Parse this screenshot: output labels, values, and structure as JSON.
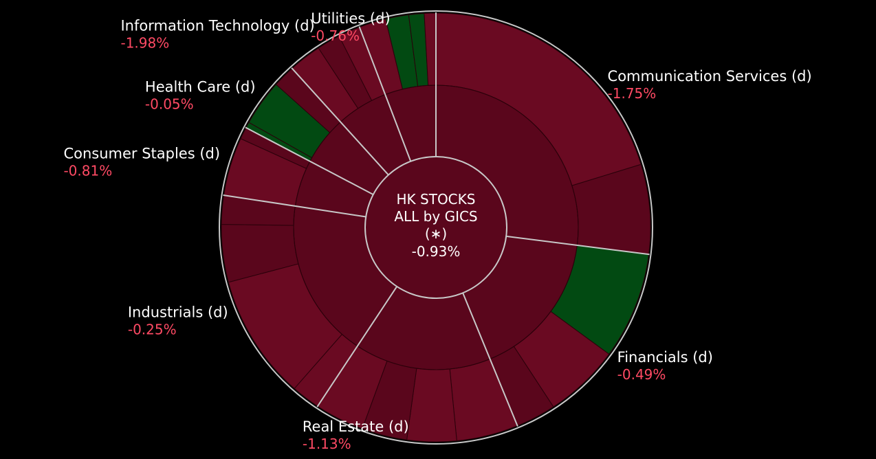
{
  "chart_data": {
    "type": "sunburst",
    "title": "HK STOCKS",
    "subtitle": "ALL by GICS",
    "marker": "(∗)",
    "total_change": "-0.93%",
    "colors": {
      "background": "#000000",
      "down": "#6a0a22",
      "down_dark": "#5a061c",
      "up": "#024a12",
      "separator": "#c8c8c8",
      "label_name": "#ffffff",
      "label_value": "#ff4a64"
    },
    "sectors": [
      {
        "name": "Communication Services (d)",
        "change": "-1.75%",
        "weight": 27,
        "subs": [
          {
            "w": 75,
            "c": "down"
          },
          {
            "w": 25,
            "c": "down_dark"
          }
        ]
      },
      {
        "name": "Financials (d)",
        "change": "-0.49%",
        "weight": 16.8,
        "subs": [
          {
            "w": 48,
            "c": "up"
          },
          {
            "w": 34,
            "c": "down"
          },
          {
            "w": 18,
            "c": "down_dark"
          }
        ]
      },
      {
        "name": "Real Estate (d)",
        "change": "-1.13%",
        "weight": 15.5,
        "subs": [
          {
            "w": 30,
            "c": "down"
          },
          {
            "w": 24,
            "c": "down"
          },
          {
            "w": 22,
            "c": "down_dark"
          },
          {
            "w": 24,
            "c": "down"
          }
        ]
      },
      {
        "name": "Industrials (d)",
        "change": "-0.25%",
        "weight": 18.1,
        "subs": [
          {
            "w": 12,
            "c": "down"
          },
          {
            "w": 52,
            "c": "down"
          },
          {
            "w": 24,
            "c": "down_dark"
          },
          {
            "w": 12,
            "c": "down_dark"
          }
        ]
      },
      {
        "name": "Consumer Staples (d)",
        "change": "-0.81%",
        "weight": 5.3,
        "subs": [
          {
            "w": 83,
            "c": "down"
          },
          {
            "w": 17,
            "c": "down_dark"
          }
        ]
      },
      {
        "name": "Health Care (d)",
        "change": "-0.05%",
        "weight": 5.6,
        "subs": [
          {
            "w": 8,
            "c": "up"
          },
          {
            "w": 62,
            "c": "up"
          },
          {
            "w": 30,
            "c": "down_dark"
          }
        ]
      },
      {
        "name": "Information Technology (d)",
        "change": "-1.98%",
        "weight": 5.9,
        "subs": [
          {
            "w": 42,
            "c": "down"
          },
          {
            "w": 30,
            "c": "down_dark"
          },
          {
            "w": 28,
            "c": "down"
          }
        ]
      },
      {
        "name": "Utilities (d)",
        "change": "-0.76%",
        "weight": 5.8,
        "subs": [
          {
            "w": 35,
            "c": "down"
          },
          {
            "w": 30,
            "c": "up"
          },
          {
            "w": 20,
            "c": "up"
          },
          {
            "w": 15,
            "c": "down"
          }
        ]
      }
    ]
  }
}
